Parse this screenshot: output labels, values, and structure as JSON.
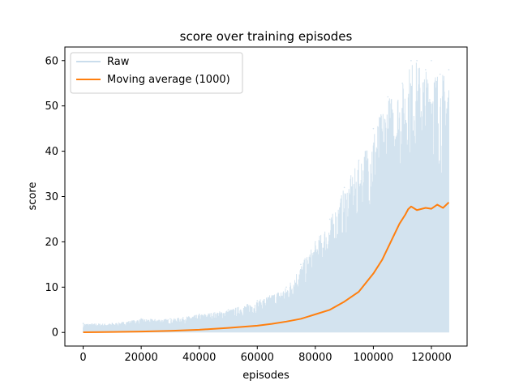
{
  "chart_data": {
    "type": "line",
    "title": "score over training episodes",
    "xlabel": "episodes",
    "ylabel": "score",
    "xlim": [
      -6300,
      132300
    ],
    "ylim": [
      -3,
      63
    ],
    "xticks": [
      0,
      20000,
      40000,
      60000,
      80000,
      100000,
      120000
    ],
    "xtick_labels": [
      "0",
      "20000",
      "40000",
      "60000",
      "80000",
      "100000",
      "120000"
    ],
    "yticks": [
      0,
      10,
      20,
      30,
      40,
      50,
      60
    ],
    "ytick_labels": [
      "0",
      "10",
      "20",
      "30",
      "40",
      "50",
      "60"
    ],
    "grid": false,
    "legend_position": "upper-left",
    "series": [
      {
        "name": "Raw",
        "color": "#a7c7e0",
        "style": "noisy-band",
        "x": [
          0,
          10000,
          20000,
          30000,
          40000,
          50000,
          60000,
          70000,
          75000,
          80000,
          85000,
          90000,
          95000,
          100000,
          105000,
          110000,
          113000,
          115000,
          118000,
          120000,
          123000,
          126000
        ],
        "min_values": [
          0,
          0,
          0,
          0,
          0,
          0,
          0,
          0,
          0,
          0,
          0,
          0,
          0,
          0,
          0,
          0,
          0,
          0,
          0,
          0,
          0,
          0
        ],
        "max_values": [
          2,
          2,
          3,
          3,
          4,
          5,
          7,
          10,
          15,
          20,
          25,
          32,
          38,
          45,
          52,
          55,
          60,
          60,
          58,
          60,
          57,
          58
        ]
      },
      {
        "name": "Moving average (1000)",
        "color": "#ff7f0e",
        "style": "line",
        "x": [
          0,
          10000,
          20000,
          30000,
          40000,
          50000,
          60000,
          65000,
          70000,
          75000,
          80000,
          85000,
          90000,
          95000,
          100000,
          103000,
          106000,
          109000,
          111000,
          112000,
          113000,
          115000,
          118000,
          120000,
          122000,
          124000,
          126000
        ],
        "values": [
          0.05,
          0.1,
          0.2,
          0.35,
          0.6,
          1.0,
          1.5,
          1.9,
          2.4,
          3.0,
          4.0,
          5.0,
          6.8,
          9.0,
          13.0,
          16.0,
          20.0,
          24.0,
          26.0,
          27.2,
          27.8,
          27.0,
          27.5,
          27.3,
          28.2,
          27.5,
          28.7
        ]
      }
    ]
  }
}
